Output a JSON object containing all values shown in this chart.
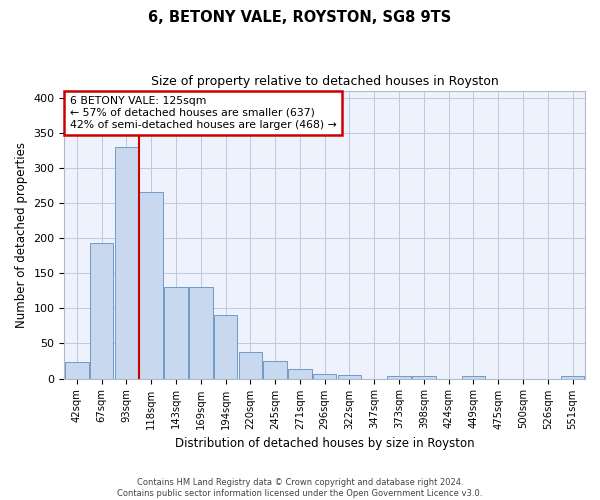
{
  "title": "6, BETONY VALE, ROYSTON, SG8 9TS",
  "subtitle": "Size of property relative to detached houses in Royston",
  "xlabel": "Distribution of detached houses by size in Royston",
  "ylabel": "Number of detached properties",
  "categories": [
    "42sqm",
    "67sqm",
    "93sqm",
    "118sqm",
    "143sqm",
    "169sqm",
    "194sqm",
    "220sqm",
    "245sqm",
    "271sqm",
    "296sqm",
    "322sqm",
    "347sqm",
    "373sqm",
    "398sqm",
    "424sqm",
    "449sqm",
    "475sqm",
    "500sqm",
    "526sqm",
    "551sqm"
  ],
  "values": [
    23,
    193,
    330,
    265,
    130,
    130,
    90,
    38,
    25,
    14,
    7,
    5,
    0,
    4,
    3,
    0,
    3,
    0,
    0,
    0,
    3
  ],
  "bar_color": "#c8d8ee",
  "bar_edge_color": "#6090c0",
  "grid_color": "#c0c8dc",
  "background_color": "#eef2fc",
  "property_label": "6 BETONY VALE: 125sqm",
  "annotation_line1": "← 57% of detached houses are smaller (637)",
  "annotation_line2": "42% of semi-detached houses are larger (468) →",
  "annotation_box_color": "#ffffff",
  "annotation_border_color": "#cc0000",
  "property_line_color": "#cc0000",
  "property_line_xindex": 2.5,
  "ylim": [
    0,
    410
  ],
  "yticks": [
    0,
    50,
    100,
    150,
    200,
    250,
    300,
    350,
    400
  ],
  "footer_line1": "Contains HM Land Registry data © Crown copyright and database right 2024.",
  "footer_line2": "Contains public sector information licensed under the Open Government Licence v3.0."
}
